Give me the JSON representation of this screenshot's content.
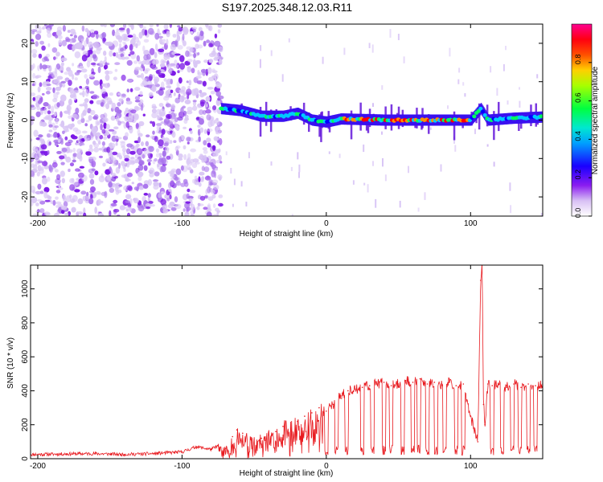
{
  "title": "S197.2025.348.12.03.R11",
  "chart_data": [
    {
      "type": "heatmap",
      "title": "S197.2025.348.12.03.R11",
      "xlabel": "Height of straight line (km)",
      "ylabel": "Frequency (Hz)",
      "xlim": [
        -205,
        150
      ],
      "ylim": [
        -25,
        25
      ],
      "x_ticks": [
        -200,
        -100,
        0,
        100
      ],
      "y_ticks": [
        -20,
        -10,
        0,
        10,
        20
      ],
      "noise_region_x": [
        -205,
        -73
      ],
      "signal_start_x": -73,
      "ridge_center": [
        [
          -73,
          3
        ],
        [
          -60,
          2.5
        ],
        [
          -45,
          1
        ],
        [
          -30,
          1
        ],
        [
          -20,
          1.8
        ],
        [
          -10,
          0
        ],
        [
          0,
          -0.5
        ],
        [
          10,
          0.3
        ],
        [
          40,
          0
        ],
        [
          60,
          0
        ],
        [
          80,
          0
        ],
        [
          100,
          0
        ],
        [
          107,
          3
        ],
        [
          112,
          0
        ],
        [
          130,
          0.5
        ],
        [
          150,
          0.8
        ]
      ],
      "colorbar": {
        "label": "Normalized spectral amplitude",
        "range": [
          0,
          1
        ],
        "ticks": [
          "0.0",
          "0.2",
          "0.4",
          "0.6",
          "0.8"
        ],
        "colors": [
          "#ffffff",
          "#c8a0f0",
          "#7800e0",
          "#0000ff",
          "#00c8ff",
          "#00ff60",
          "#c8ff00",
          "#ff9000",
          "#ff0000",
          "#ff00a0"
        ]
      }
    },
    {
      "type": "line",
      "xlabel": "Height of straight line (km)",
      "ylabel": "SNR (10 * v/v)",
      "xlim": [
        -205,
        150
      ],
      "ylim": [
        0,
        1140
      ],
      "x_ticks": [
        -200,
        -100,
        0,
        100
      ],
      "y_ticks": [
        0,
        200,
        400,
        600,
        800,
        1000
      ],
      "series": [
        {
          "name": "SNR",
          "color": "#e8191e",
          "x": [
            -205,
            -180,
            -160,
            -140,
            -120,
            -100,
            -90,
            -80,
            -75,
            -70,
            -65,
            -62,
            -58,
            -52,
            -45,
            -40,
            -35,
            -30,
            -20,
            -15,
            -10,
            -5,
            0,
            5,
            10,
            15,
            20,
            25,
            30,
            35,
            40,
            45,
            50,
            55,
            60,
            65,
            70,
            75,
            80,
            85,
            90,
            95,
            100,
            105,
            107,
            108,
            109,
            110,
            112,
            115,
            120,
            125,
            130,
            135,
            140,
            145,
            150
          ],
          "values": [
            25,
            28,
            30,
            25,
            30,
            40,
            70,
            55,
            75,
            60,
            130,
            170,
            150,
            110,
            120,
            140,
            160,
            190,
            220,
            250,
            270,
            300,
            280,
            320,
            370,
            400,
            410,
            420,
            430,
            440,
            450,
            430,
            440,
            460,
            450,
            470,
            440,
            450,
            440,
            450,
            430,
            440,
            250,
            100,
            1050,
            1140,
            320,
            200,
            440,
            430,
            440,
            420,
            440,
            420,
            440,
            430,
            440
          ]
        }
      ]
    }
  ]
}
